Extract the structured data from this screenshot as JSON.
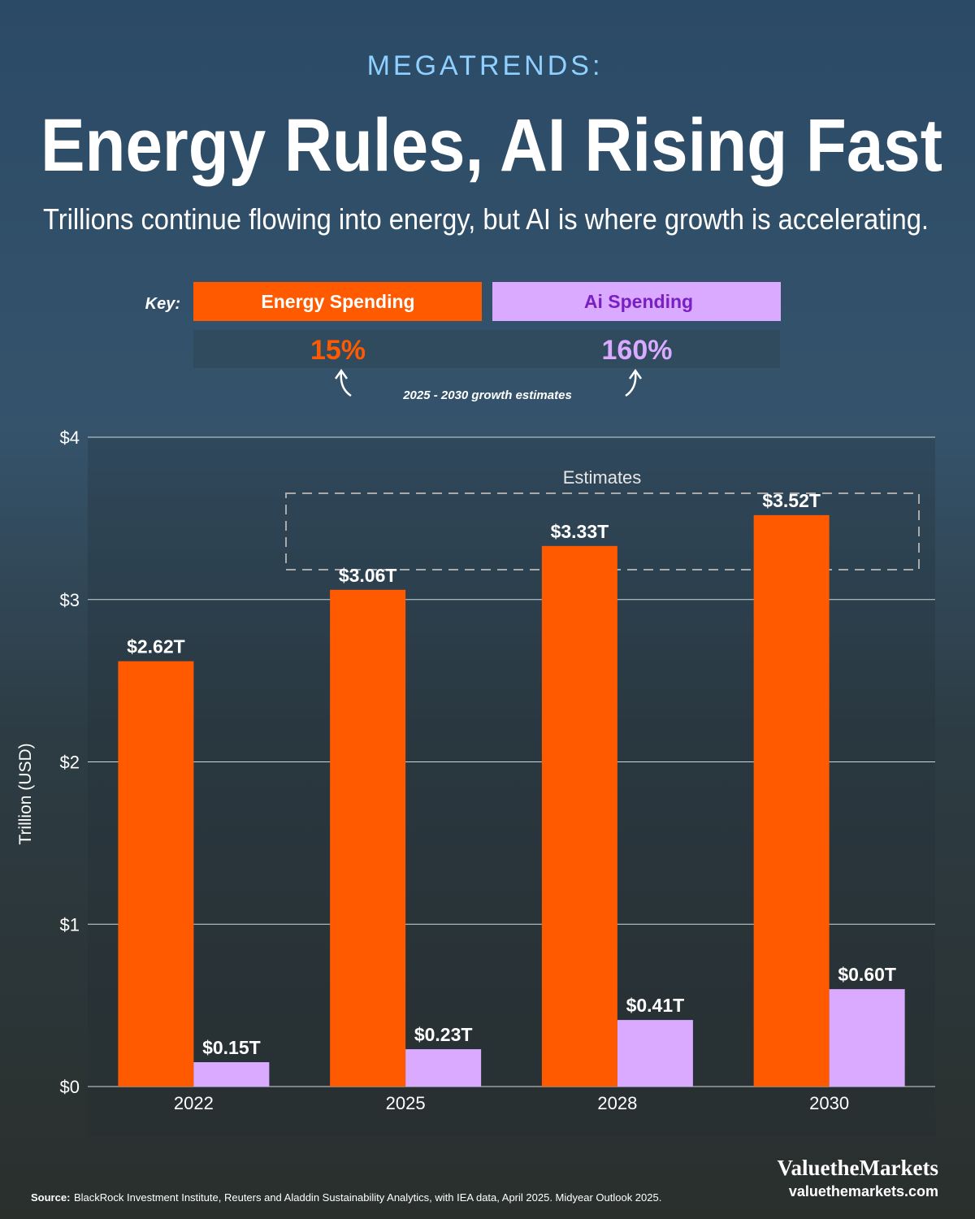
{
  "header": {
    "kicker": "MEGATRENDS:",
    "title": "Energy Rules, AI Rising Fast",
    "subtitle": "Trillions continue flowing into energy, but AI is where growth is accelerating."
  },
  "key": {
    "label": "Key:",
    "growth": [
      "15%",
      "160%"
    ],
    "growth_note": "2025 - 2030 growth estimates"
  },
  "chart_data": {
    "type": "bar",
    "categories": [
      "2022",
      "2025",
      "2028",
      "2030"
    ],
    "series": [
      {
        "name": "Energy Spending",
        "color": "#ff5a00",
        "values": [
          2.62,
          3.06,
          3.33,
          3.52
        ],
        "value_labels": [
          "$2.62T",
          "$3.06T",
          "$3.33T",
          "$3.52T"
        ]
      },
      {
        "name": "Ai Spending",
        "color": "#d9aaff",
        "values": [
          0.15,
          0.23,
          0.41,
          0.6
        ],
        "value_labels": [
          "$0.15T",
          "$0.23T",
          "$0.41T",
          "$0.60T"
        ]
      }
    ],
    "ylabel": "Trillion (USD)",
    "ylim": [
      0,
      4
    ],
    "yticks": [
      {
        "value": 0,
        "label": "$0"
      },
      {
        "value": 1,
        "label": "$1"
      },
      {
        "value": 2,
        "label": "$2"
      },
      {
        "value": 3,
        "label": "$3"
      },
      {
        "value": 4,
        "label": "$4"
      }
    ],
    "grid": true,
    "annotation": "Estimates"
  },
  "footer": {
    "source_label": "Source:",
    "source": "BlackRock Investment Institute, Reuters and Aladdin Sustainability Analytics, with IEA data, April 2025. Midyear Outlook 2025.",
    "brand": "ValuetheMarkets",
    "url": "valuethemarkets.com"
  }
}
